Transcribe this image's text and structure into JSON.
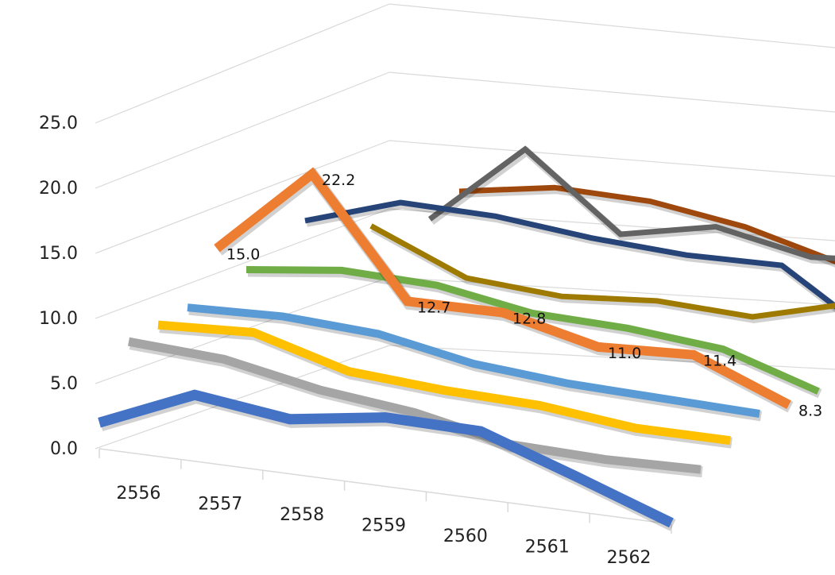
{
  "chart_data": {
    "type": "line",
    "title": "",
    "xlabel": "",
    "ylabel": "",
    "ylim": [
      0,
      25
    ],
    "yticks": [
      "0.0",
      "5.0",
      "10.0",
      "15.0",
      "20.0",
      "25.0"
    ],
    "categories": [
      "2556",
      "2557",
      "2558",
      "2559",
      "2560",
      "2561",
      "2562"
    ],
    "grid": true,
    "legend": "none",
    "style": "3d-line",
    "series": [
      {
        "color": "#4472c4",
        "values": [
          2.0,
          5.1,
          4.2,
          5.3,
          5.2,
          2.7,
          0.1
        ]
      },
      {
        "color": "#a5a5a5",
        "values": [
          8.0,
          7.6,
          6.2,
          5.4,
          3.9,
          3.7,
          3.9
        ]
      },
      {
        "color": "#ffc000",
        "values": [
          9.1,
          9.5,
          7.4,
          6.9,
          6.7,
          5.9,
          5.9
        ]
      },
      {
        "color": "#5b9bd5",
        "values": [
          10.3,
          10.6,
          10.2,
          8.8,
          8.2,
          8.0,
          7.8
        ]
      },
      {
        "color": "#ed7d31",
        "values": [
          15.0,
          22.2,
          12.7,
          12.8,
          11.0,
          11.4,
          8.3
        ],
        "labels": [
          "15.0",
          "22.2",
          "12.7",
          "12.8",
          "11.0",
          "11.4",
          "8.3"
        ]
      },
      {
        "color": "#70ad47",
        "values": [
          13.1,
          14.1,
          13.9,
          12.6,
          12.4,
          11.7,
          9.2
        ]
      },
      {
        "color": "#9e7b00",
        "values": [
          null,
          17.8,
          14.4,
          13.9,
          14.6,
          14.3,
          16.5
        ]
      },
      {
        "color": "#264478",
        "values": [
          17.1,
          19.8,
          19.7,
          18.9,
          18.5,
          18.7,
          13.4
        ]
      },
      {
        "color": "#636363",
        "values": [
          null,
          18.3,
          25.7,
          19.2,
          21.0,
          19.4,
          20.1
        ]
      },
      {
        "color": "#9e480e",
        "values": [
          null,
          20.8,
          22.3,
          22.2,
          21.0,
          18.8,
          18.9
        ]
      }
    ],
    "extra_tail": [
      {
        "series_index": 8,
        "value": 14.7
      },
      {
        "series_index": 9,
        "value": 14.1
      },
      {
        "series_index": 6,
        "value": 13.4
      }
    ]
  }
}
